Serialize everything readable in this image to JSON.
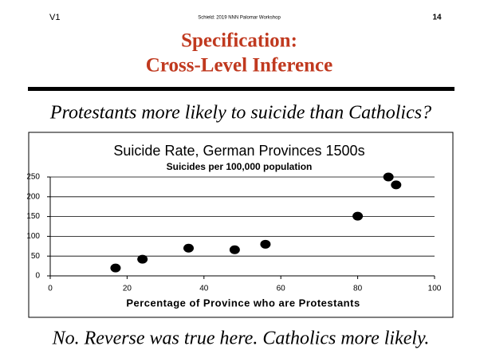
{
  "header": {
    "version": "V1",
    "credit": "Schield: 2019 NNN Palomar Workshop",
    "page": "14"
  },
  "slide": {
    "title_lines": [
      "Specification:",
      "Cross-Level Inference"
    ],
    "question": "Protestants more likely to suicide than Catholics?",
    "answer": "No. Reverse was true here. Catholics more likely."
  },
  "chart_data": {
    "type": "scatter",
    "title": "Suicide Rate, German Provinces 1500s",
    "subtitle": "Suicides per 100,000 population",
    "x_label": "Percentage of Province who are Protestants",
    "series": [
      {
        "color": "#000000",
        "x": [
          17,
          24,
          36,
          48,
          56,
          80,
          88,
          90
        ],
        "values": [
          20,
          42,
          70,
          66,
          80,
          151,
          250,
          230
        ]
      }
    ],
    "xlim": [
      0,
      100
    ],
    "xticks": [
      0,
      20,
      40,
      60,
      80,
      100
    ],
    "ylim": [
      0,
      250
    ],
    "yticks": [
      0,
      50,
      100,
      150,
      200,
      250
    ],
    "grid": true
  }
}
